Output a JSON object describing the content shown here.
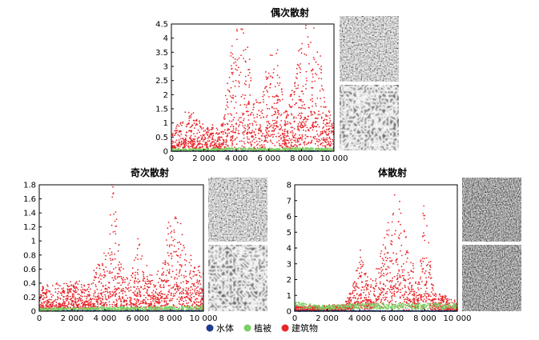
{
  "figure": {
    "legend": [
      {
        "label": "水体",
        "color": "#1f3c8c"
      },
      {
        "label": "植被",
        "color": "#7ccf63"
      },
      {
        "label": "建筑物",
        "color": "#e8262a"
      }
    ]
  },
  "chart_data": [
    {
      "type": "scatter",
      "title": "偶次散射",
      "xlabel": "",
      "ylabel": "",
      "xlim": [
        0,
        10000
      ],
      "ylim": [
        0,
        4.5
      ],
      "x_ticks": [
        0,
        2000,
        4000,
        6000,
        8000,
        10000
      ],
      "x_tick_labels": [
        "0",
        "2 000",
        "4 000",
        "6 000",
        "8 000",
        "10 000"
      ],
      "y_ticks": [
        0,
        0.5,
        1,
        1.5,
        2,
        2.5,
        3,
        3.5,
        4,
        4.5
      ],
      "y_tick_labels": [
        "0",
        "0.5",
        "1",
        "1.5",
        "2",
        "2.5",
        "3",
        "3.5",
        "4",
        "4.5"
      ],
      "series": [
        {
          "name": "水体",
          "color": "#1f3c8c",
          "x": [
            0,
            2000,
            4000,
            6000,
            8000,
            10000
          ],
          "y": [
            0.01,
            0.01,
            0.01,
            0.01,
            0.01,
            0.01
          ]
        },
        {
          "name": "植被",
          "color": "#7ccf63",
          "x": [
            0,
            2000,
            4000,
            6000,
            8000,
            10000
          ],
          "y": [
            0.08,
            0.08,
            0.12,
            0.1,
            0.12,
            0.1
          ]
        },
        {
          "name": "建筑物",
          "color": "#e8262a",
          "x": [
            0,
            500,
            1000,
            2000,
            3000,
            3500,
            4000,
            4500,
            5000,
            5500,
            6000,
            6500,
            7000,
            7500,
            8000,
            8500,
            9000,
            9500,
            10000
          ],
          "y": [
            0.6,
            1.0,
            1.3,
            0.9,
            0.7,
            2.5,
            4.3,
            4.0,
            2.2,
            1.5,
            3.2,
            3.5,
            1.2,
            2.3,
            3.6,
            4.0,
            3.8,
            1.5,
            1.0
          ]
        }
      ]
    },
    {
      "type": "scatter",
      "title": "奇次散射",
      "xlabel": "",
      "ylabel": "",
      "xlim": [
        0,
        10000
      ],
      "ylim": [
        0,
        1.8
      ],
      "x_ticks": [
        0,
        2000,
        4000,
        6000,
        8000,
        10000
      ],
      "x_tick_labels": [
        "0",
        "2 000",
        "4 000",
        "6 000",
        "8 000",
        "10 000"
      ],
      "y_ticks": [
        0,
        0.2,
        0.4,
        0.6,
        0.8,
        1,
        1.2,
        1.4,
        1.6,
        1.8
      ],
      "y_tick_labels": [
        "0",
        "0.2",
        "0.4",
        "0.6",
        "0.8",
        "1",
        "1.2",
        "1.4",
        "1.6",
        "1.8"
      ],
      "series": [
        {
          "name": "水体",
          "color": "#1f3c8c",
          "x": [
            0,
            2000,
            4000,
            6000,
            8000,
            10000
          ],
          "y": [
            0.01,
            0.01,
            0.01,
            0.01,
            0.01,
            0.01
          ]
        },
        {
          "name": "植被",
          "color": "#7ccf63",
          "x": [
            0,
            2000,
            4000,
            6000,
            8000,
            10000
          ],
          "y": [
            0.04,
            0.05,
            0.06,
            0.06,
            0.07,
            0.08
          ]
        },
        {
          "name": "建筑物",
          "color": "#e8262a",
          "x": [
            0,
            1000,
            2000,
            3000,
            3500,
            4000,
            4500,
            5000,
            5500,
            6000,
            6500,
            7000,
            7500,
            8000,
            8500,
            9000,
            9500,
            10000
          ],
          "y": [
            0.3,
            0.35,
            0.4,
            0.35,
            0.6,
            0.9,
            1.7,
            0.7,
            0.4,
            1.1,
            0.6,
            0.4,
            0.6,
            1.35,
            1.2,
            0.8,
            0.6,
            0.5
          ]
        }
      ]
    },
    {
      "type": "scatter",
      "title": "体散射",
      "xlabel": "",
      "ylabel": "",
      "xlim": [
        0,
        10000
      ],
      "ylim": [
        0,
        8
      ],
      "x_ticks": [
        0,
        2000,
        4000,
        6000,
        8000,
        10000
      ],
      "x_tick_labels": [
        "0",
        "2 000",
        "4 000",
        "6 000",
        "8 000",
        "10 000"
      ],
      "y_ticks": [
        0,
        1,
        2,
        3,
        4,
        5,
        6,
        7,
        8
      ],
      "y_tick_labels": [
        "0",
        "1",
        "2",
        "3",
        "4",
        "5",
        "6",
        "7",
        "8"
      ],
      "series": [
        {
          "name": "水体",
          "color": "#1f3c8c",
          "x": [
            0,
            2000,
            4000,
            6000,
            8000,
            10000
          ],
          "y": [
            0.02,
            0.02,
            0.02,
            0.02,
            0.02,
            0.02
          ]
        },
        {
          "name": "植被",
          "color": "#7ccf63",
          "x": [
            0,
            2000,
            4000,
            6000,
            8000,
            10000
          ],
          "y": [
            0.6,
            0.35,
            0.5,
            0.5,
            0.5,
            0.5
          ]
        },
        {
          "name": "建筑物",
          "color": "#e8262a",
          "x": [
            0,
            1000,
            2000,
            3000,
            3500,
            4000,
            4500,
            5000,
            5500,
            6000,
            6500,
            7000,
            7500,
            8000,
            8500,
            9000,
            10000
          ],
          "y": [
            0.3,
            0.3,
            0.35,
            0.4,
            1.2,
            3.6,
            2.0,
            2.5,
            4.5,
            6.2,
            7.4,
            3.5,
            2.0,
            6.2,
            1.5,
            1.0,
            0.6
          ]
        }
      ]
    }
  ]
}
